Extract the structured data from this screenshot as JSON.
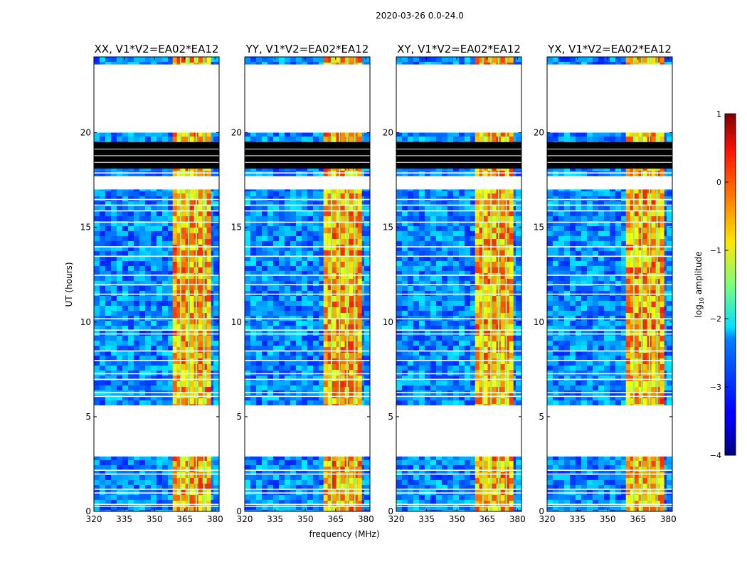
{
  "chart_data": {
    "type": "heatmap",
    "suptitle": "2020-03-26 0.0-24.0",
    "xlabel": "frequency (MHz)",
    "ylabel": "UT (hours)",
    "xlim": [
      320,
      382
    ],
    "ylim": [
      0,
      24
    ],
    "xticks": [
      320,
      335,
      350,
      365,
      380
    ],
    "yticks": [
      0,
      5,
      10,
      15,
      20
    ],
    "panels": [
      {
        "title": "XX, V1*V2=EA02*EA12",
        "band": [
          359,
          377
        ]
      },
      {
        "title": "YY, V1*V2=EA02*EA12",
        "band": [
          359,
          377
        ]
      },
      {
        "title": "XY, V1*V2=EA02*EA12",
        "band": [
          359,
          377
        ]
      },
      {
        "title": "YX, V1*V2=EA02*EA12",
        "band": [
          359,
          377
        ]
      }
    ],
    "colorbar": {
      "label": "log",
      "label_sub": "10",
      "label_rest": " amplitude",
      "range": [
        -4,
        1
      ],
      "ticks": [
        1,
        0,
        -1,
        -2,
        -3,
        -4
      ],
      "colormap": "jet"
    },
    "gaps_hours": [
      [
        2.9,
        5.6
      ],
      [
        17.0,
        17.7
      ],
      [
        20.0,
        23.6
      ]
    ],
    "black_band_hours": [
      [
        18.1,
        19.5
      ]
    ],
    "flag_lines_hours": [
      0.3,
      0.4,
      1.0,
      1.2,
      2.0,
      2.2,
      6.1,
      6.3,
      7.0,
      7.3,
      8.0,
      8.5,
      9.4,
      9.6,
      10.2,
      11.5,
      12.0,
      12.5,
      13.5,
      14.0,
      15.3,
      15.9,
      16.2,
      16.5,
      17.9
    ]
  }
}
